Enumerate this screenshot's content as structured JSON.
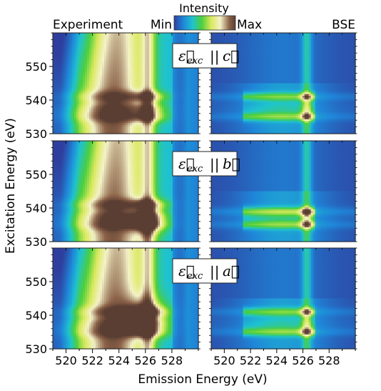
{
  "header": {
    "left_label": "Experiment",
    "right_label": "BSE",
    "colorbar_title": "Intensity",
    "colorbar_min": "Min",
    "colorbar_max": "Max"
  },
  "colors": {
    "colormap": [
      "#2f3f9e",
      "#1f86d8",
      "#1fc3cf",
      "#4ccf3c",
      "#d8e85a",
      "#f4f2c8",
      "#8b6248",
      "#5a3e33"
    ]
  },
  "chart_data": {
    "type": "heatmap",
    "xlabel": "Emission Energy (eV)",
    "ylabel": "Excitation Energy (eV)",
    "x_ticks": [
      520,
      522,
      524,
      526,
      528
    ],
    "y_ticks": [
      530,
      540,
      550
    ],
    "xlim": [
      519,
      530
    ],
    "ylim": [
      530,
      560
    ],
    "panels": [
      {
        "row": 0,
        "polarization": "ε⃗exc || c⃗",
        "label_main": "ε⃗",
        "label_sub": "exc",
        "label_rel": "||",
        "label_vec": "c⃗"
      },
      {
        "row": 1,
        "polarization": "ε⃗exc || b⃗",
        "label_main": "ε⃗",
        "label_sub": "exc",
        "label_rel": "||",
        "label_vec": "b⃗"
      },
      {
        "row": 2,
        "polarization": "ε⃗exc || a⃗",
        "label_main": "ε⃗",
        "label_sub": "exc",
        "label_rel": "||",
        "label_vec": "a⃗"
      }
    ]
  }
}
